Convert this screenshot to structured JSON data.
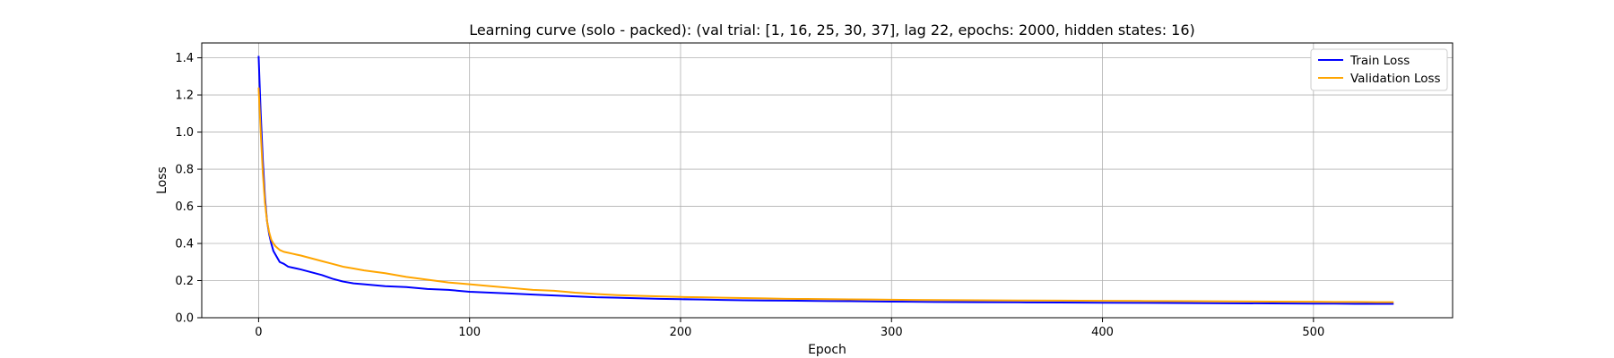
{
  "chart_data": {
    "type": "line",
    "title": "Learning curve (solo - packed): (val trial: [1, 16, 25, 30, 37], lag 22, epochs: 2000, hidden states: 16)",
    "xlabel": "Epoch",
    "ylabel": "Loss",
    "xlim": [
      -26.95,
      565.95
    ],
    "ylim": [
      0,
      1.48
    ],
    "xticks": [
      0,
      100,
      200,
      300,
      400,
      500
    ],
    "yticks": [
      0.0,
      0.2,
      0.4,
      0.6,
      0.8,
      1.0,
      1.2,
      1.4
    ],
    "xtick_labels": [
      "0",
      "100",
      "200",
      "300",
      "400",
      "500"
    ],
    "ytick_labels": [
      "0.0",
      "0.2",
      "0.4",
      "0.6",
      "0.8",
      "1.0",
      "1.2",
      "1.4"
    ],
    "grid": true,
    "legend_position": "top-right",
    "series": [
      {
        "name": "Train Loss",
        "color": "#0000ff",
        "x": [
          0,
          1,
          2,
          3,
          4,
          5,
          6,
          7,
          8,
          9,
          10,
          12,
          14,
          16,
          18,
          20,
          25,
          30,
          35,
          40,
          45,
          50,
          60,
          70,
          80,
          90,
          100,
          110,
          120,
          130,
          140,
          150,
          160,
          170,
          180,
          190,
          200,
          210,
          220,
          230,
          240,
          250,
          260,
          270,
          280,
          290,
          300,
          320,
          340,
          360,
          380,
          400,
          420,
          440,
          460,
          480,
          500,
          510,
          520,
          530,
          538
        ],
        "y": [
          1.41,
          1.1,
          0.85,
          0.65,
          0.52,
          0.45,
          0.4,
          0.36,
          0.34,
          0.32,
          0.3,
          0.29,
          0.275,
          0.27,
          0.265,
          0.26,
          0.245,
          0.23,
          0.21,
          0.195,
          0.185,
          0.18,
          0.17,
          0.165,
          0.155,
          0.15,
          0.14,
          0.135,
          0.13,
          0.125,
          0.12,
          0.115,
          0.11,
          0.108,
          0.105,
          0.102,
          0.1,
          0.098,
          0.096,
          0.094,
          0.093,
          0.092,
          0.091,
          0.09,
          0.089,
          0.088,
          0.087,
          0.085,
          0.084,
          0.083,
          0.082,
          0.081,
          0.08,
          0.079,
          0.078,
          0.077,
          0.076,
          0.076,
          0.075,
          0.075,
          0.075
        ]
      },
      {
        "name": "Validation Loss",
        "color": "#ffa500",
        "x": [
          0,
          1,
          2,
          3,
          4,
          5,
          6,
          7,
          8,
          9,
          10,
          12,
          14,
          16,
          18,
          20,
          25,
          30,
          35,
          40,
          45,
          50,
          60,
          70,
          80,
          90,
          100,
          110,
          120,
          130,
          140,
          150,
          160,
          170,
          180,
          190,
          200,
          210,
          220,
          230,
          240,
          250,
          260,
          270,
          280,
          290,
          300,
          320,
          340,
          360,
          380,
          400,
          420,
          440,
          460,
          480,
          500,
          510,
          520,
          530,
          538
        ],
        "y": [
          1.24,
          1.0,
          0.78,
          0.62,
          0.52,
          0.46,
          0.42,
          0.4,
          0.385,
          0.375,
          0.365,
          0.355,
          0.35,
          0.345,
          0.34,
          0.335,
          0.32,
          0.305,
          0.29,
          0.275,
          0.265,
          0.255,
          0.24,
          0.22,
          0.205,
          0.19,
          0.18,
          0.17,
          0.16,
          0.15,
          0.145,
          0.135,
          0.128,
          0.122,
          0.118,
          0.115,
          0.112,
          0.11,
          0.108,
          0.106,
          0.104,
          0.102,
          0.101,
          0.1,
          0.099,
          0.098,
          0.097,
          0.095,
          0.094,
          0.093,
          0.092,
          0.091,
          0.09,
          0.089,
          0.088,
          0.087,
          0.086,
          0.085,
          0.085,
          0.084,
          0.084
        ]
      }
    ]
  }
}
